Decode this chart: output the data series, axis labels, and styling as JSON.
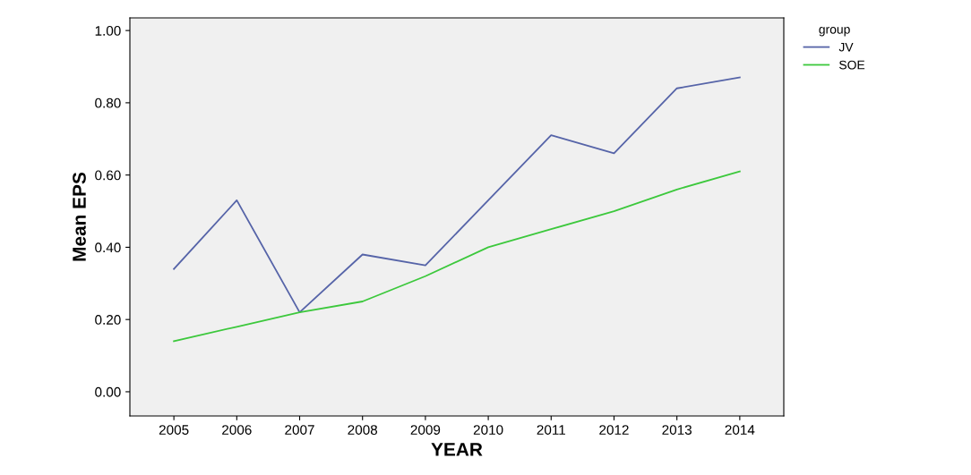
{
  "chart_data": {
    "type": "line",
    "xlabel": "YEAR",
    "ylabel": "Mean EPS",
    "legend_title": "group",
    "legend": "top right",
    "categories": [
      "2005",
      "2006",
      "2007",
      "2008",
      "2009",
      "2010",
      "2011",
      "2012",
      "2013",
      "2014"
    ],
    "series": [
      {
        "name": "JV",
        "color": "#5664a8",
        "values": [
          0.34,
          0.53,
          0.22,
          0.38,
          0.35,
          0.53,
          0.71,
          0.66,
          0.84,
          0.87
        ]
      },
      {
        "name": "SOE",
        "color": "#3cc83c",
        "values": [
          0.14,
          0.18,
          0.22,
          0.25,
          0.32,
          0.4,
          0.45,
          0.5,
          0.56,
          0.61
        ]
      }
    ],
    "ylim": [
      -0.067,
      1.035
    ],
    "yticks": [
      {
        "value": 0,
        "label": "0.00"
      },
      {
        "value": 0.2,
        "label": "0.20"
      },
      {
        "value": 0.4,
        "label": "0.40"
      },
      {
        "value": 0.6,
        "label": "0.60"
      },
      {
        "value": 0.8,
        "label": "0.80"
      },
      {
        "value": 1.0,
        "label": "1.00"
      }
    ],
    "grid": false,
    "marker": "none",
    "line_style": "solid"
  }
}
